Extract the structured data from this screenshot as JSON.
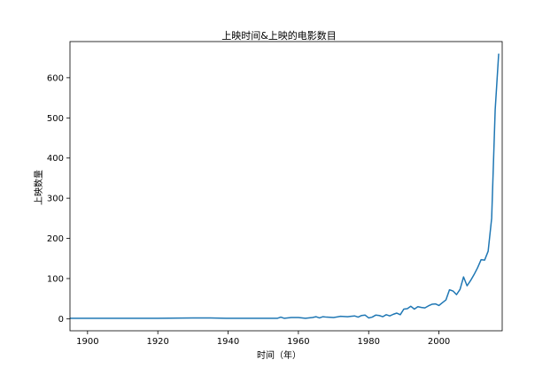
{
  "chart_data": {
    "type": "line",
    "title": "上映时间&上映的电影数目",
    "xlabel": "时间（年）",
    "ylabel": "上映数量",
    "xlim": [
      1895,
      2018
    ],
    "ylim": [
      -30,
      690
    ],
    "xticks": [
      1900,
      1920,
      1940,
      1960,
      1980,
      2000
    ],
    "yticks": [
      0,
      100,
      200,
      300,
      400,
      500,
      600
    ],
    "grid": false,
    "line_color": "#1f77b4",
    "series": [
      {
        "x": [
          1895,
          1900,
          1910,
          1920,
          1930,
          1935,
          1940,
          1945,
          1950,
          1952,
          1954,
          1955,
          1956,
          1958,
          1960,
          1962,
          1964,
          1965,
          1966,
          1967,
          1968,
          1970,
          1972,
          1974,
          1975,
          1976,
          1977,
          1978,
          1979,
          1980,
          1981,
          1982,
          1983,
          1984,
          1985,
          1986,
          1987,
          1988,
          1989,
          1990,
          1991,
          1992,
          1993,
          1994,
          1995,
          1996,
          1997,
          1998,
          1999,
          2000,
          2001,
          2002,
          2003,
          2004,
          2005,
          2006,
          2007,
          2008,
          2009,
          2010,
          2011,
          2012,
          2013,
          2014,
          2015,
          2016,
          2017
        ],
        "y": [
          1,
          1,
          1,
          1,
          2,
          2,
          1,
          1,
          1,
          1,
          1,
          4,
          1,
          3,
          3,
          1,
          3,
          5,
          2,
          5,
          4,
          3,
          6,
          5,
          6,
          7,
          4,
          8,
          9,
          2,
          4,
          9,
          8,
          5,
          10,
          7,
          11,
          14,
          10,
          24,
          25,
          31,
          24,
          30,
          28,
          27,
          32,
          36,
          37,
          33,
          40,
          47,
          72,
          69,
          60,
          73,
          104,
          82,
          95,
          110,
          127,
          147,
          146,
          168,
          250,
          520,
          660
        ]
      }
    ]
  }
}
